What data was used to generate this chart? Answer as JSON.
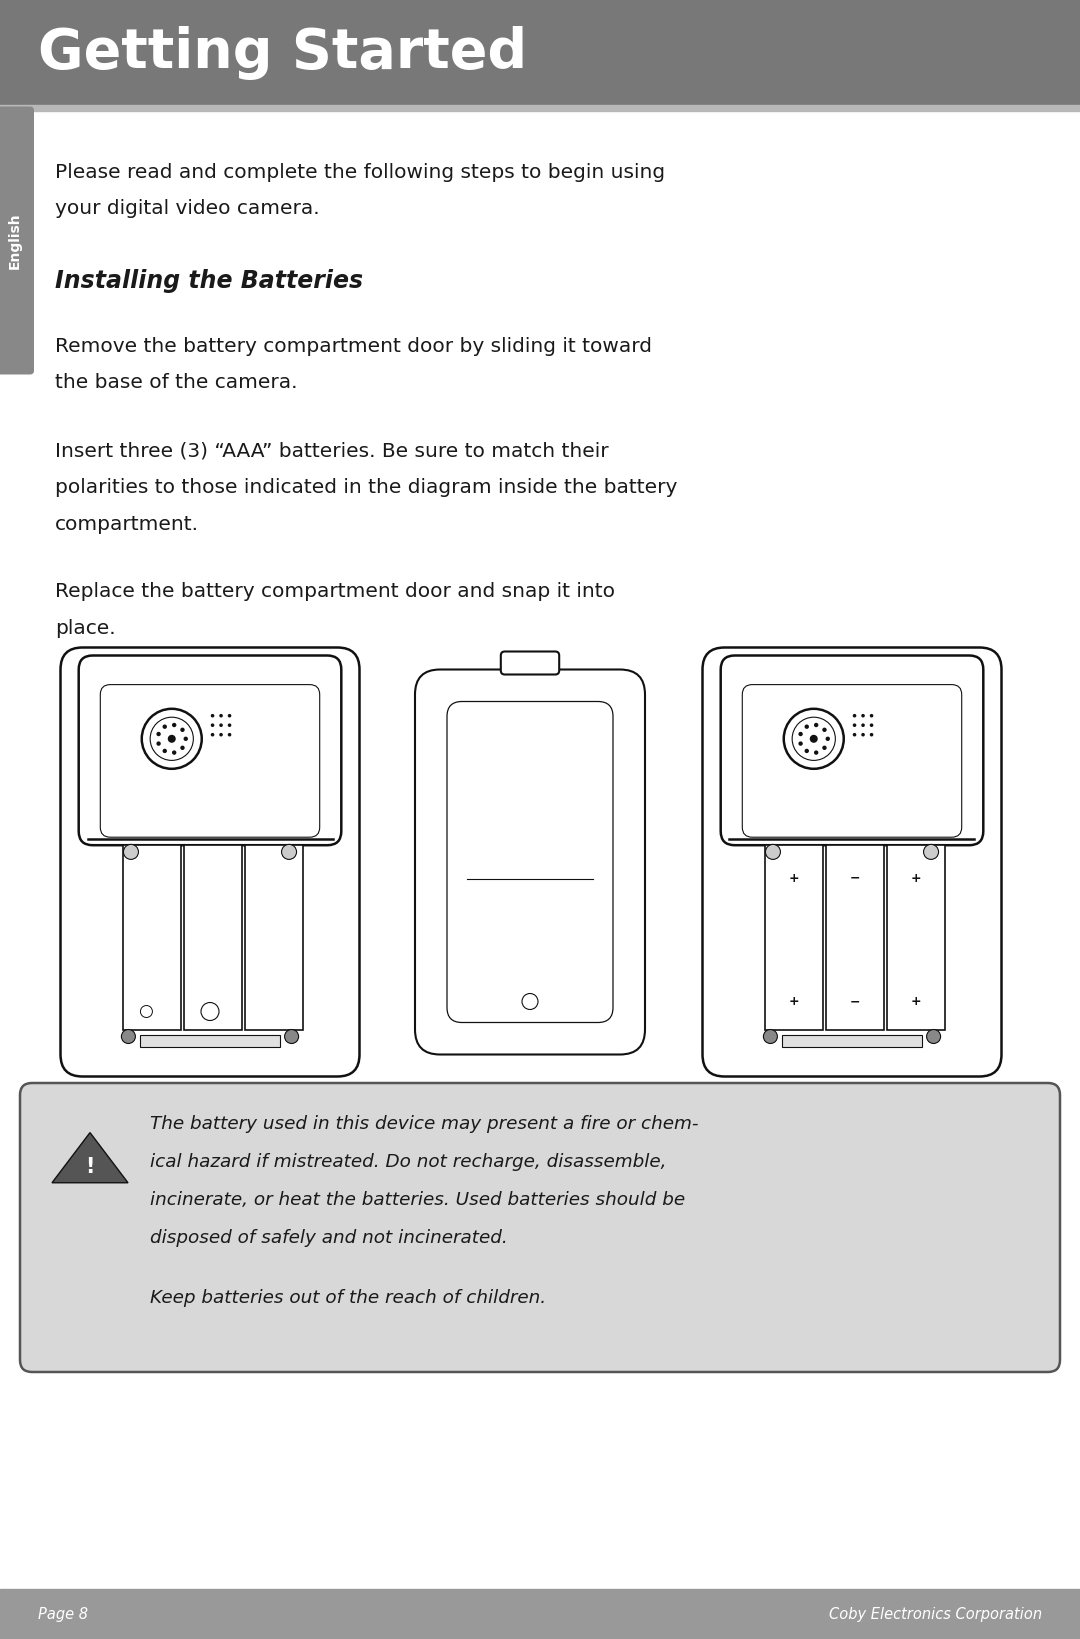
{
  "header_bg": "#787878",
  "header_text": "Getting Started",
  "header_text_color": "#ffffff",
  "sidebar_bg": "#888888",
  "sidebar_text": "English",
  "sidebar_text_color": "#ffffff",
  "body_bg": "#ffffff",
  "body_text_color": "#1a1a1a",
  "footer_bg": "#999999",
  "footer_text_color": "#ffffff",
  "footer_left": "Page 8",
  "footer_right": "Coby Electronics Corporation",
  "intro_line1": "Please read and complete the following steps to begin using",
  "intro_line2": "your digital video camera.",
  "section_title": "Installing the Batteries",
  "para1_line1": "Remove the battery compartment door by sliding it toward",
  "para1_line2": "the base of the camera.",
  "para2_line1": "Insert three (3) “AAA” batteries. Be sure to match their",
  "para2_line2": "polarities to those indicated in the diagram inside the battery",
  "para2_line3": "compartment.",
  "para3_line1": "Replace the battery compartment door and snap it into",
  "para3_line2": "place.",
  "warning_line1": "The battery used in this device may present a fire or chem-",
  "warning_line2": "ical hazard if mistreated. Do not recharge, disassemble,",
  "warning_line3": "incinerate, or heat the batteries. Used batteries should be",
  "warning_line4": "disposed of safely and not incinerated.",
  "warning_line6": "Keep batteries out of the reach of children.",
  "warning_box_bg": "#d8d8d8",
  "warning_border": "#555555"
}
